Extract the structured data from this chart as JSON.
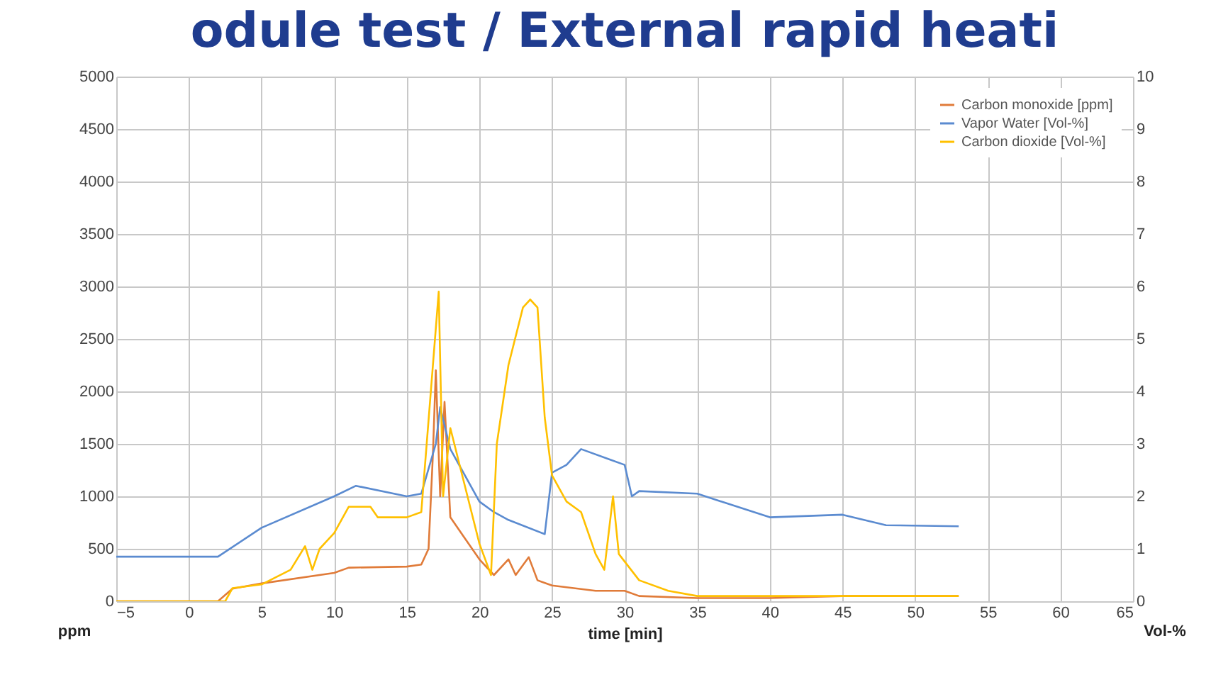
{
  "chart_data": {
    "type": "line",
    "title": "odule test / External rapid heati",
    "xlabel": "time [min]",
    "ylabel": "ppm",
    "y2label": "Vol-%",
    "xlim": [
      -5,
      65
    ],
    "xticks": [
      -5,
      0,
      5,
      10,
      15,
      20,
      25,
      30,
      35,
      40,
      45,
      50,
      55,
      60,
      65
    ],
    "ylim": [
      0,
      5000
    ],
    "yticks": [
      0,
      500,
      1000,
      1500,
      2000,
      2500,
      3000,
      3500,
      4000,
      4500,
      5000
    ],
    "y2lim": [
      0,
      10
    ],
    "y2ticks": [
      0,
      1,
      2,
      3,
      4,
      5,
      6,
      7,
      8,
      9,
      10
    ],
    "grid": true,
    "legend": "top right",
    "series": [
      {
        "name": "Carbon monoxide [ppm]",
        "color": "#e07b39",
        "x": [
          -5,
          2,
          3,
          5,
          10,
          11,
          15,
          16,
          16.5,
          16.8,
          17,
          17.3,
          17.6,
          18,
          19,
          20,
          21,
          22,
          22.5,
          23.4,
          24,
          25,
          28,
          30,
          31,
          35,
          40,
          45,
          53
        ],
        "values": [
          0,
          0,
          120,
          170,
          270,
          320,
          330,
          350,
          500,
          1400,
          2200,
          1000,
          1900,
          800,
          600,
          400,
          250,
          400,
          250,
          420,
          200,
          150,
          100,
          100,
          50,
          30,
          30,
          50,
          50
        ]
      },
      {
        "name": "Vapor Water [Vol-%]",
        "color": "#5b8bd0",
        "axis": "y2",
        "x": [
          -5,
          2,
          5,
          10,
          11.5,
          15,
          16,
          17,
          17.3,
          18,
          20,
          21,
          22,
          24.5,
          25,
          26,
          27,
          29,
          30,
          30.5,
          31,
          35,
          40,
          45,
          48,
          53
        ],
        "values": [
          0.85,
          0.85,
          1.4,
          2,
          2.2,
          2,
          2.05,
          3,
          3.7,
          2.9,
          1.9,
          1.7,
          1.55,
          1.28,
          2.45,
          2.6,
          2.9,
          2.7,
          2.6,
          2,
          2.1,
          2.05,
          1.6,
          1.65,
          1.45,
          1.43
        ]
      },
      {
        "name": "Carbon dioxide [Vol-%]",
        "color": "#ffc000",
        "axis": "y2",
        "x": [
          -5,
          2.5,
          3,
          5,
          7,
          8,
          8.5,
          9,
          10,
          11,
          12.5,
          13,
          15,
          16,
          16.8,
          17.2,
          17.5,
          18,
          19,
          20,
          20.8,
          21.2,
          22,
          23,
          23.5,
          24,
          24.5,
          25,
          26,
          27,
          28,
          28.6,
          29.2,
          29.6,
          31,
          33,
          35,
          53
        ],
        "values": [
          0,
          0,
          0.25,
          0.32,
          0.6,
          1.05,
          0.6,
          1,
          1.3,
          1.8,
          1.8,
          1.6,
          1.6,
          1.7,
          4.5,
          5.9,
          2,
          3.3,
          2.2,
          1.1,
          0.5,
          3,
          4.5,
          5.6,
          5.75,
          5.6,
          3.5,
          2.4,
          1.9,
          1.7,
          0.9,
          0.6,
          2,
          0.9,
          0.4,
          0.2,
          0.1,
          0.1
        ]
      }
    ]
  }
}
